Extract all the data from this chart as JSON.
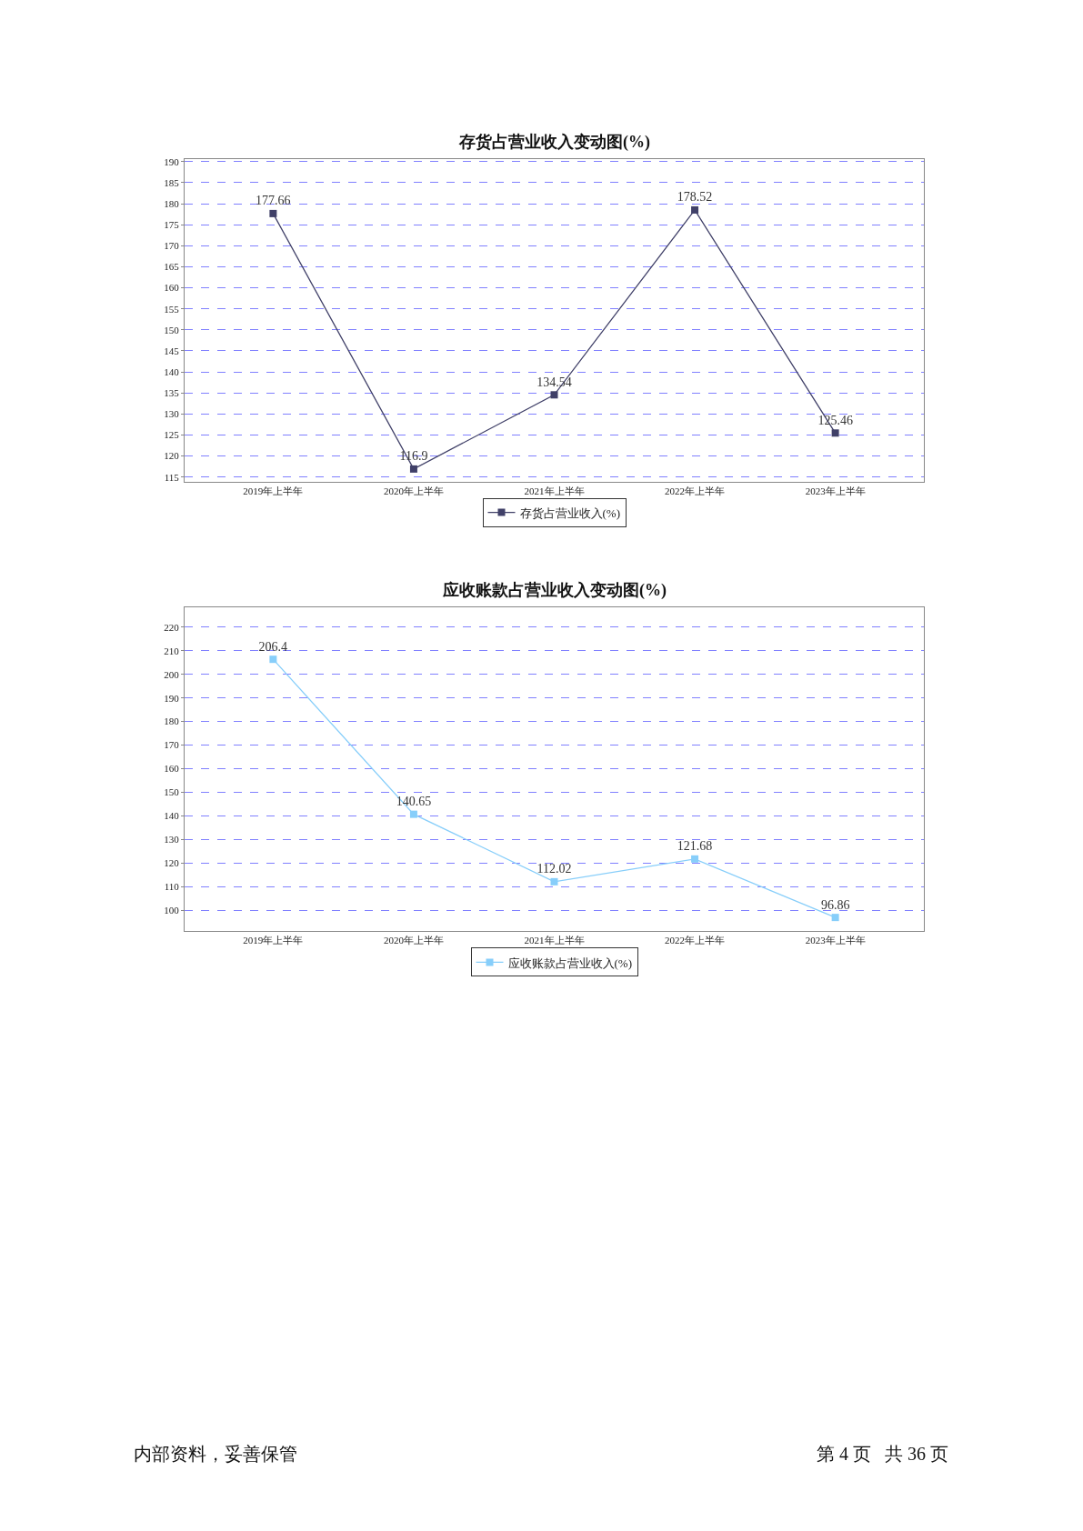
{
  "chart_data": [
    {
      "type": "line",
      "title": "存货占营业收入变动图(%)",
      "categories": [
        "2019年上半年",
        "2020年上半年",
        "2021年上半年",
        "2022年上半年",
        "2023年上半年"
      ],
      "series": [
        {
          "name": "存货占营业收入(%)",
          "color": "#404068",
          "values": [
            177.66,
            116.9,
            134.54,
            178.52,
            125.46
          ]
        }
      ],
      "ylim": [
        113.9,
        190.7
      ],
      "yticks": [
        115,
        120,
        125,
        130,
        135,
        140,
        145,
        150,
        155,
        160,
        165,
        170,
        175,
        180,
        185,
        190
      ],
      "grid": "y",
      "legend": "bottom",
      "marker": "square",
      "line_style": "solid",
      "data_labels": true
    },
    {
      "type": "line",
      "title": "应收账款占营业收入变动图(%)",
      "categories": [
        "2019年上半年",
        "2020年上半年",
        "2021年上半年",
        "2022年上半年",
        "2023年上半年"
      ],
      "series": [
        {
          "name": "应收账款占营业收入(%)",
          "color": "#87cefa",
          "values": [
            206.4,
            140.65,
            112.02,
            121.68,
            96.86
          ]
        }
      ],
      "ylim": [
        91.3,
        228.3
      ],
      "yticks": [
        100,
        110,
        120,
        130,
        140,
        150,
        160,
        170,
        180,
        190,
        200,
        210,
        220
      ],
      "grid": "y",
      "legend": "bottom",
      "marker": "square",
      "line_style": "solid",
      "data_labels": true,
      "annotations": [
        "内部资料，妥善保管",
        "第 4 页   共 36 页"
      ]
    }
  ]
}
